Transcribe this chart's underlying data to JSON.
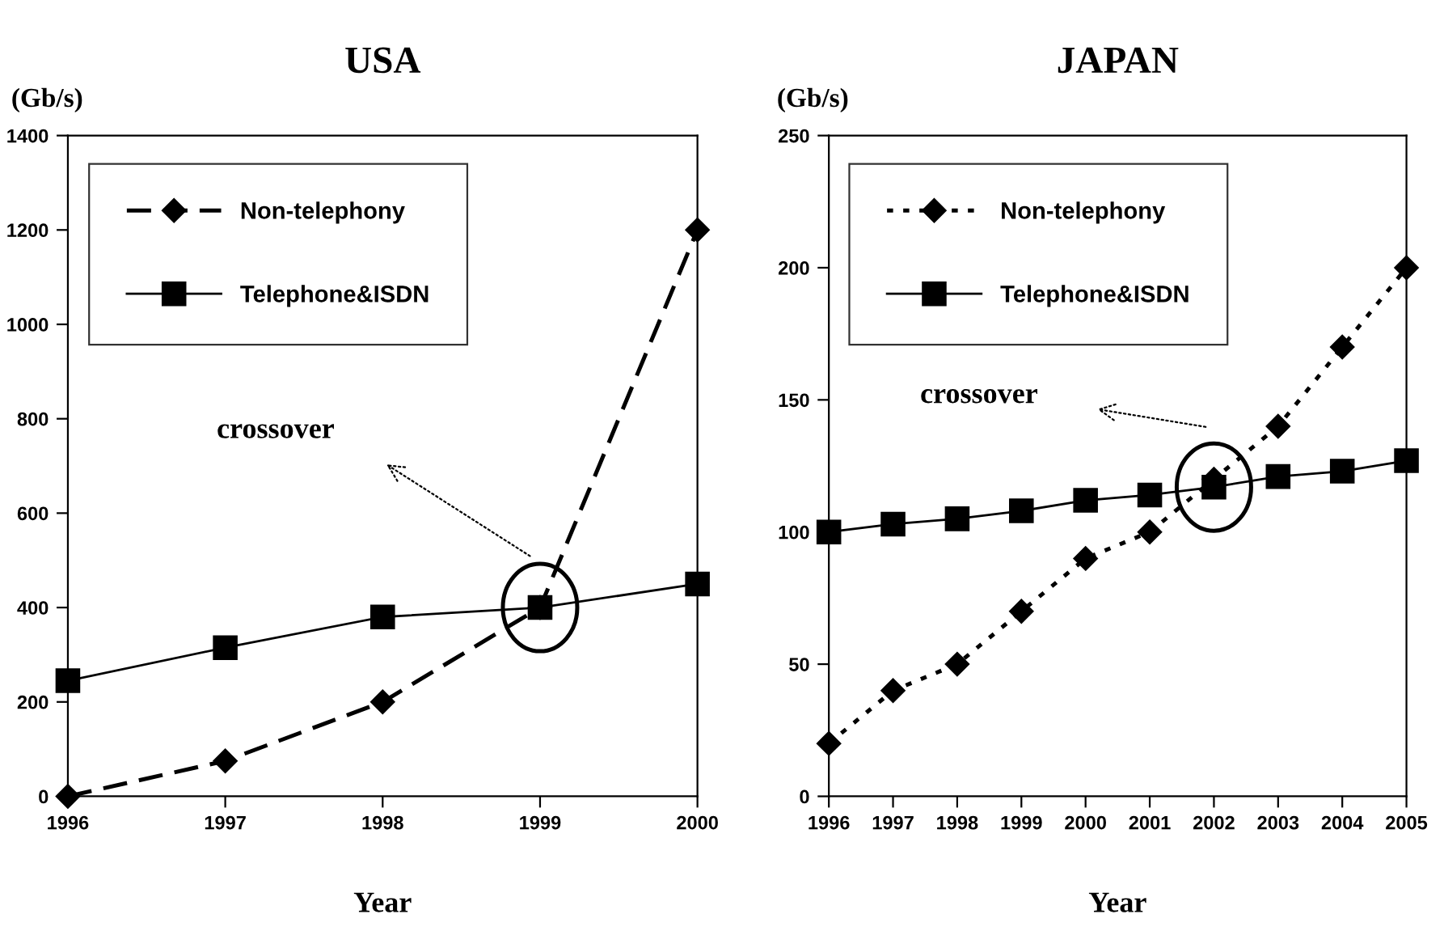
{
  "chart_data": [
    {
      "type": "line",
      "title": "USA",
      "ylabel": "(Gb/s)",
      "xlabel": "Year",
      "categories": [
        "1996",
        "1997",
        "1998",
        "1999",
        "2000"
      ],
      "ylim": [
        0,
        1400
      ],
      "yticks": [
        0,
        200,
        400,
        600,
        800,
        1000,
        1200,
        1400
      ],
      "grid": false,
      "legend": "top left",
      "series": [
        {
          "name": "Non-telephony",
          "color": "#000000",
          "marker": "diamond",
          "line_style": "dashed",
          "values": [
            0,
            75,
            200,
            400,
            1200
          ]
        },
        {
          "name": "Telephone&ISDN",
          "color": "#000000",
          "marker": "square",
          "line_style": "solid",
          "values": [
            245,
            315,
            380,
            400,
            450
          ]
        }
      ],
      "annotations": [
        "crossover"
      ]
    },
    {
      "type": "line",
      "title": "JAPAN",
      "ylabel": "(Gb/s)",
      "xlabel": "Year",
      "categories": [
        "1996",
        "1997",
        "1998",
        "1999",
        "2000",
        "2001",
        "2002",
        "2003",
        "2004",
        "2005"
      ],
      "ylim": [
        0,
        250
      ],
      "yticks": [
        0,
        50,
        100,
        150,
        200,
        250
      ],
      "grid": false,
      "legend": "top left",
      "series": [
        {
          "name": "Non-telephony",
          "color": "#000000",
          "marker": "diamond",
          "line_style": "dotted",
          "values": [
            20,
            40,
            50,
            70,
            90,
            100,
            120,
            140,
            170,
            200
          ]
        },
        {
          "name": "Telephone&ISDN",
          "color": "#000000",
          "marker": "square",
          "line_style": "solid",
          "values": [
            100,
            103,
            105,
            108,
            112,
            114,
            117,
            121,
            123,
            127
          ]
        }
      ],
      "annotations": [
        "crossover"
      ]
    }
  ]
}
